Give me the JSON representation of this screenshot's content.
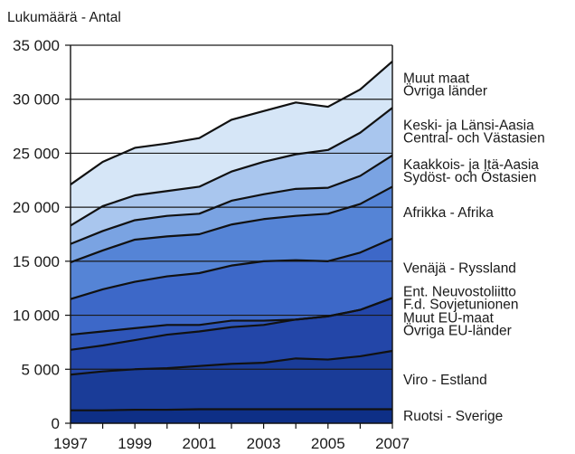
{
  "chart_data": {
    "type": "area",
    "stacked": true,
    "ylabel": "Lukumäärä - Antal",
    "xlabel": "",
    "title": "",
    "x": [
      1997,
      1998,
      1999,
      2000,
      2001,
      2002,
      2003,
      2004,
      2005,
      2006,
      2007
    ],
    "x_ticks": [
      "1997",
      "1999",
      "2001",
      "2003",
      "2005",
      "2007"
    ],
    "ylim": [
      0,
      35000
    ],
    "y_ticks": [
      "0",
      "5 000",
      "10 000",
      "15 000",
      "20 000",
      "25 000",
      "30 000",
      "35 000"
    ],
    "y_tick_values": [
      0,
      5000,
      10000,
      15000,
      20000,
      25000,
      30000,
      35000
    ],
    "grid": "horizontal",
    "legend": "right",
    "series": [
      {
        "name_lines": [
          "Ruotsi - Sverige"
        ],
        "color": "#0e2f86",
        "cumulative": [
          1200,
          1200,
          1250,
          1250,
          1300,
          1300,
          1300,
          1300,
          1300,
          1300,
          1300
        ]
      },
      {
        "name_lines": [
          "Viro - Estland"
        ],
        "color": "#1a3c98",
        "cumulative": [
          4500,
          4800,
          5000,
          5100,
          5300,
          5500,
          5600,
          6000,
          5900,
          6200,
          6700
        ]
      },
      {
        "name_lines": [
          "Muut EU-maat",
          "Övriga EU-länder"
        ],
        "color": "#2346a8",
        "cumulative": [
          6800,
          7200,
          7700,
          8200,
          8500,
          8900,
          9100,
          9600,
          9900,
          10500,
          11600
        ]
      },
      {
        "name_lines": [
          "Ent. Neuvostoliitto",
          "F.d. Sovjetunionen"
        ],
        "color": "#2e55b8",
        "cumulative": [
          8200,
          8500,
          8800,
          9100,
          9100,
          9500,
          9500,
          9600,
          9900,
          10500,
          11600
        ]
      },
      {
        "name_lines": [
          "Venäjä - Ryssland"
        ],
        "color": "#3d68c8",
        "cumulative": [
          11500,
          12400,
          13100,
          13600,
          13900,
          14600,
          15000,
          15100,
          15000,
          15800,
          17100
        ]
      },
      {
        "name_lines": [
          "Afrikka - Afrika"
        ],
        "color": "#5584d6",
        "cumulative": [
          14900,
          16000,
          17000,
          17300,
          17500,
          18400,
          18900,
          19200,
          19400,
          20300,
          21900
        ]
      },
      {
        "name_lines": [
          "Kaakkois- ja Itä-Aasia",
          "Sydöst- och Östasien"
        ],
        "color": "#7aa3e2",
        "cumulative": [
          16600,
          17800,
          18800,
          19200,
          19400,
          20600,
          21200,
          21700,
          21800,
          22900,
          24800
        ]
      },
      {
        "name_lines": [
          "Keski- ja Länsi-Aasia",
          "Central- och Västasien"
        ],
        "color": "#a9c6ee",
        "cumulative": [
          18300,
          20100,
          21100,
          21500,
          21900,
          23300,
          24200,
          24900,
          25300,
          26900,
          29200
        ]
      },
      {
        "name_lines": [
          "Muut maat",
          "Övriga länder"
        ],
        "color": "#d6e6f7",
        "cumulative": [
          22100,
          24200,
          25500,
          25900,
          26400,
          28100,
          28900,
          29700,
          29300,
          30900,
          33500
        ]
      }
    ]
  }
}
